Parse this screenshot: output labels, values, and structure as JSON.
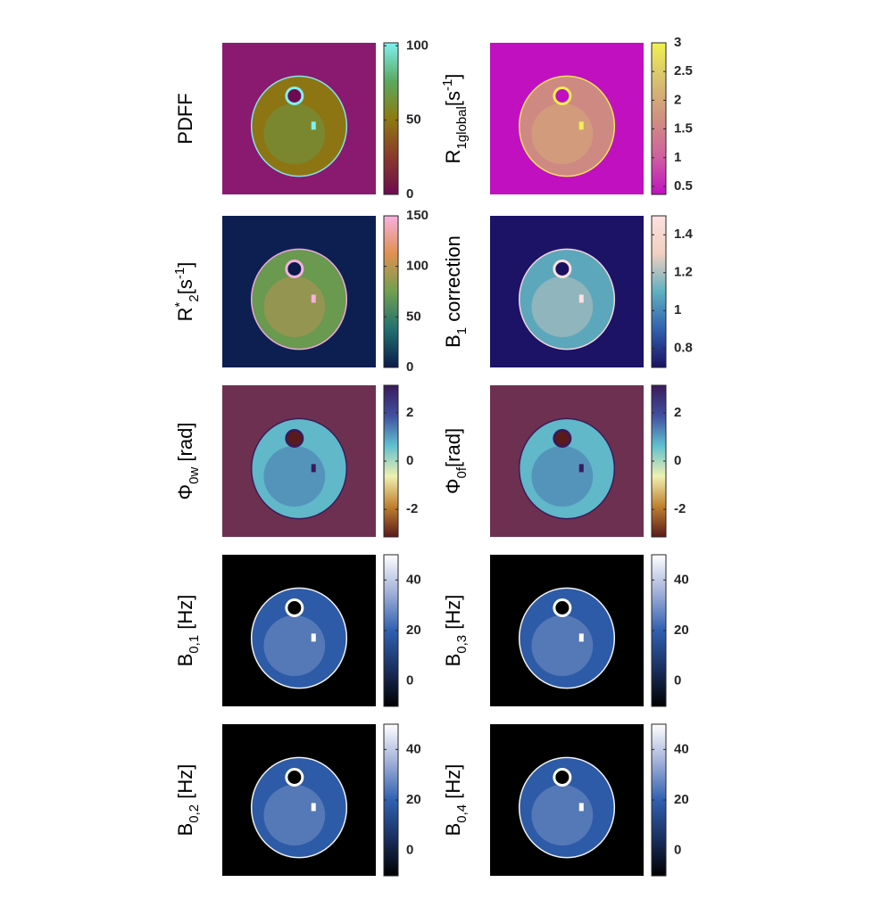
{
  "panels": [
    {
      "label": [
        {
          "text": "PDFF"
        }
      ],
      "background": "#8a1a70",
      "colormap": [
        "#6e0b50",
        "#8a3a2a",
        "#8e7a10",
        "#5aaa60",
        "#80f0f0"
      ],
      "clim": [
        0,
        102
      ],
      "ticks": [
        0,
        50,
        100
      ]
    },
    {
      "label": [
        {
          "text": "R"
        },
        {
          "text": "1global",
          "shift": "sub"
        },
        {
          "text": "[s"
        },
        {
          "text": "-1",
          "shift": "sup"
        },
        {
          "text": "]"
        }
      ],
      "background": "#c010c0",
      "colormap": [
        "#c010c0",
        "#d060a0",
        "#d09080",
        "#d8c070",
        "#f0f050"
      ],
      "clim": [
        0.36,
        3
      ],
      "ticks": [
        0.5,
        1,
        1.5,
        2,
        2.5,
        3
      ]
    },
    {
      "label": [
        {
          "text": "R"
        },
        {
          "text": "*",
          "shift": "sup"
        },
        {
          "text": "2",
          "shift": "sub"
        },
        {
          "text": "[s"
        },
        {
          "text": "-1",
          "shift": "sup"
        },
        {
          "text": "]"
        }
      ],
      "background": "#0d1f50",
      "colormap": [
        "#0a1a4a",
        "#207070",
        "#70a050",
        "#e09050",
        "#f8b0e0"
      ],
      "clim": [
        0,
        150
      ],
      "ticks": [
        0,
        50,
        100,
        150
      ]
    },
    {
      "label": [
        {
          "text": "B"
        },
        {
          "text": "1",
          "shift": "sub"
        },
        {
          "text": " correction"
        }
      ],
      "background": "#1c1266",
      "colormap": [
        "#1a1060",
        "#3060b0",
        "#60b0c0",
        "#f0d0c0",
        "#fde0e0"
      ],
      "clim": [
        0.7,
        1.5
      ],
      "ticks": [
        0.8,
        1,
        1.2,
        1.4
      ]
    },
    {
      "label": [
        {
          "text": "Φ"
        },
        {
          "text": "0w",
          "shift": "sub"
        },
        {
          "text": " [rad]"
        }
      ],
      "background": "#6e3050",
      "colormap": [
        "#5a1a1a",
        "#c08030",
        "#f0f0b0",
        "#60c0d0",
        "#4050a0",
        "#3a1a5a"
      ],
      "clim": [
        -3.14,
        3.14
      ],
      "ticks": [
        -2,
        0,
        2
      ]
    },
    {
      "label": [
        {
          "text": "Φ"
        },
        {
          "text": "0f",
          "shift": "sub"
        },
        {
          "text": "[rad]"
        }
      ],
      "background": "#6e3050",
      "colormap": [
        "#5a1a1a",
        "#c08030",
        "#f0f0b0",
        "#60c0d0",
        "#4050a0",
        "#3a1a5a"
      ],
      "clim": [
        -3.14,
        3.14
      ],
      "ticks": [
        -2,
        0,
        2
      ]
    },
    {
      "label": [
        {
          "text": "B"
        },
        {
          "text": "0,1",
          "shift": "sub"
        },
        {
          "text": " [Hz]"
        }
      ],
      "background": "#000000",
      "colormap": [
        "#000000",
        "#1a3060",
        "#3060b0",
        "#a0b0d8",
        "#ffffff"
      ],
      "clim": [
        -10,
        50
      ],
      "ticks": [
        0,
        20,
        40
      ]
    },
    {
      "label": [
        {
          "text": "B"
        },
        {
          "text": "0,3",
          "shift": "sub"
        },
        {
          "text": " [Hz]"
        }
      ],
      "background": "#000000",
      "colormap": [
        "#000000",
        "#1a3060",
        "#3060b0",
        "#a0b0d8",
        "#ffffff"
      ],
      "clim": [
        -10,
        50
      ],
      "ticks": [
        0,
        20,
        40
      ]
    },
    {
      "label": [
        {
          "text": "B"
        },
        {
          "text": "0,2",
          "shift": "sub"
        },
        {
          "text": " [Hz]"
        }
      ],
      "background": "#000000",
      "colormap": [
        "#000000",
        "#1a3060",
        "#3060b0",
        "#a0b0d8",
        "#ffffff"
      ],
      "clim": [
        -10,
        50
      ],
      "ticks": [
        0,
        20,
        40
      ]
    },
    {
      "label": [
        {
          "text": "B"
        },
        {
          "text": "0,4",
          "shift": "sub"
        },
        {
          "text": " [Hz]"
        }
      ],
      "background": "#000000",
      "colormap": [
        "#000000",
        "#1a3060",
        "#3060b0",
        "#a0b0d8",
        "#ffffff"
      ],
      "clim": [
        -10,
        50
      ],
      "ticks": [
        0,
        20,
        40
      ]
    }
  ]
}
